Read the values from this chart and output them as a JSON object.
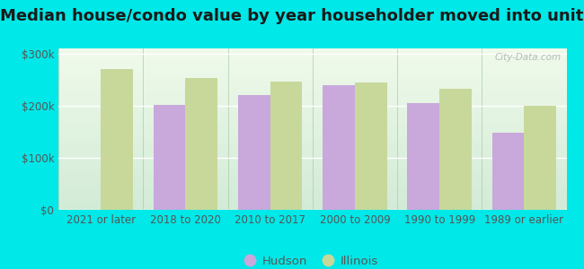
{
  "title": "Median house/condo value by year householder moved into unit",
  "categories": [
    "2021 or later",
    "2018 to 2020",
    "2010 to 2017",
    "2000 to 2009",
    "1990 to 1999",
    "1989 or earlier"
  ],
  "hudson_values": [
    null,
    201000,
    220000,
    240000,
    205000,
    148000
  ],
  "illinois_values": [
    270000,
    253000,
    246000,
    245000,
    233000,
    200000
  ],
  "hudson_color": "#c9a8dc",
  "illinois_color": "#c8d89a",
  "plot_bg_top": "#f0faf2",
  "plot_bg_bottom": "#d8f0e0",
  "outer_background": "#00e8e8",
  "ylim": [
    0,
    310000
  ],
  "yticks": [
    0,
    100000,
    200000,
    300000
  ],
  "ytick_labels": [
    "$0",
    "$100k",
    "$200k",
    "$300k"
  ],
  "bar_width": 0.38,
  "legend_labels": [
    "Hudson",
    "Illinois"
  ],
  "watermark": "City-Data.com",
  "title_fontsize": 13,
  "tick_fontsize": 8.5
}
